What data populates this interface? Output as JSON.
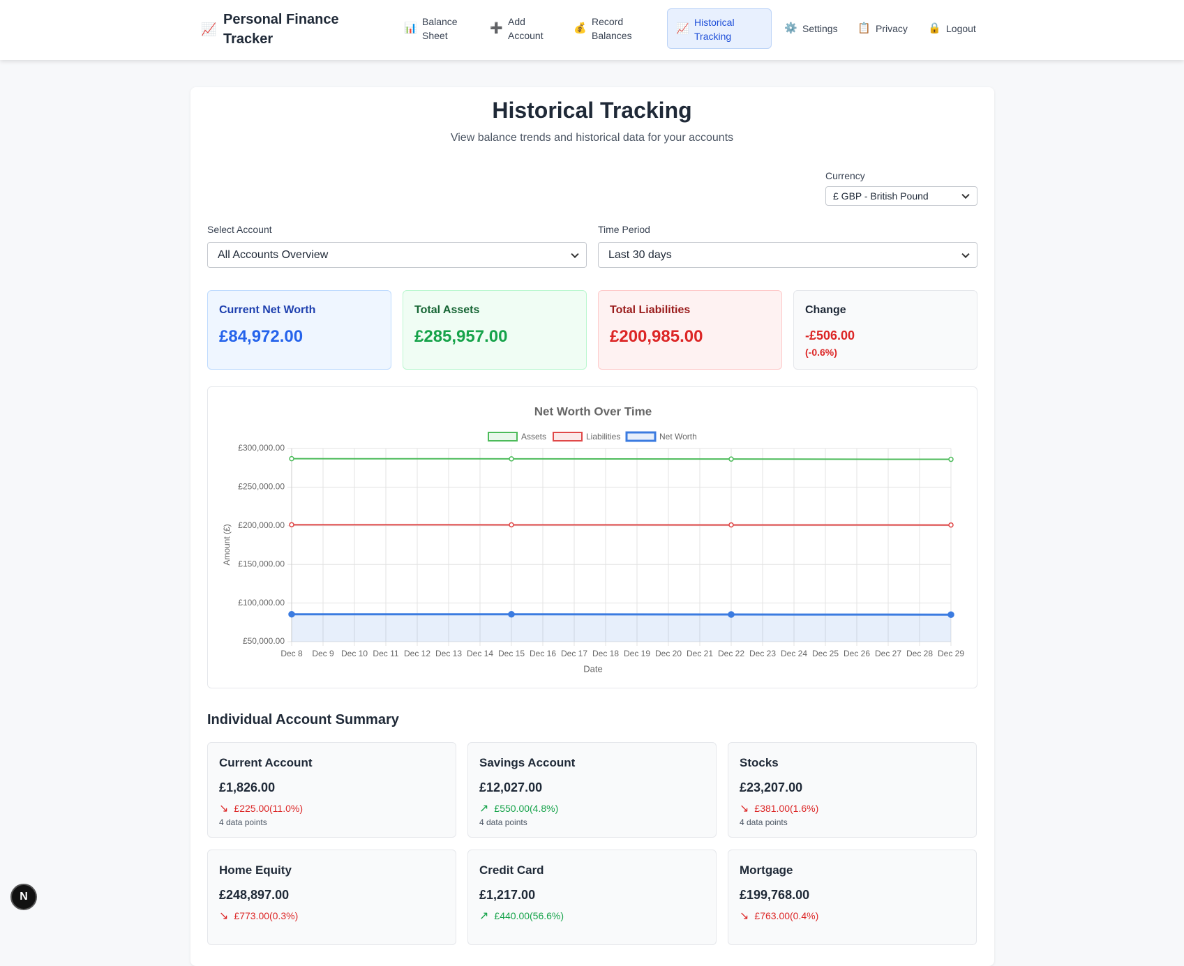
{
  "nav": {
    "brand_icon": "📈",
    "brand": "Personal Finance Tracker",
    "items": [
      {
        "icon": "📊",
        "label": "Balance Sheet"
      },
      {
        "icon": "➕",
        "label": "Add Account"
      },
      {
        "icon": "💰",
        "label": "Record Balances"
      },
      {
        "icon": "📈",
        "label": "Historical Tracking"
      },
      {
        "icon": "⚙️",
        "label": "Settings"
      },
      {
        "icon": "📋",
        "label": "Privacy"
      },
      {
        "icon": "🔒",
        "label": "Logout"
      }
    ]
  },
  "header": {
    "title": "Historical Tracking",
    "subtitle": "View balance trends and historical data for your accounts"
  },
  "filters": {
    "currency_label": "Currency",
    "currency": "£ GBP - British Pound",
    "account_label": "Select Account",
    "account": "All Accounts Overview",
    "period_label": "Time Period",
    "period": "Last 30 days"
  },
  "stats": [
    {
      "title": "Current Net Worth",
      "value": "£84,972.00"
    },
    {
      "title": "Total Assets",
      "value": "£285,957.00"
    },
    {
      "title": "Total Liabilities",
      "value": "£200,985.00"
    },
    {
      "title": "Change",
      "value": "-£506.00",
      "percent": "(-0.6%)"
    }
  ],
  "chart_data": {
    "type": "line",
    "title": "Net Worth Over Time",
    "x_label": "Date",
    "y_label": "Amount (£)",
    "xticks": [
      "Dec 8",
      "Dec 9",
      "Dec 10",
      "Dec 11",
      "Dec 12",
      "Dec 13",
      "Dec 14",
      "Dec 15",
      "Dec 16",
      "Dec 17",
      "Dec 18",
      "Dec 19",
      "Dec 20",
      "Dec 21",
      "Dec 22",
      "Dec 23",
      "Dec 24",
      "Dec 25",
      "Dec 26",
      "Dec 27",
      "Dec 28",
      "Dec 29"
    ],
    "x": [
      "Dec 8",
      "Dec 15",
      "Dec 22",
      "Dec 29"
    ],
    "series": [
      {
        "name": "Assets",
        "color": "#4cbb5a",
        "values": [
          286800,
          286600,
          286300,
          285957
        ]
      },
      {
        "name": "Liabilities",
        "color": "#e04848",
        "values": [
          201322,
          201200,
          201100,
          200985
        ]
      },
      {
        "name": "Net Worth",
        "color": "#3b7be0",
        "values": [
          85478,
          85400,
          85200,
          84972
        ],
        "fill": true
      }
    ],
    "ylim": [
      50000,
      300000
    ],
    "yticks": [
      {
        "value": 50000,
        "label": "£50,000.00"
      },
      {
        "value": 100000,
        "label": "£100,000.00"
      },
      {
        "value": 150000,
        "label": "£150,000.00"
      },
      {
        "value": 200000,
        "label": "£200,000.00"
      },
      {
        "value": 250000,
        "label": "£250,000.00"
      },
      {
        "value": 300000,
        "label": "£300,000.00"
      }
    ],
    "grid": true,
    "legend": "top"
  },
  "summary": {
    "title": "Individual Account Summary",
    "accounts": [
      {
        "name": "Current Account",
        "amount": "£1,826.00",
        "arrow": "↘",
        "change": "£225.00(11.0%)",
        "points": "4 data points"
      },
      {
        "name": "Savings Account",
        "amount": "£12,027.00",
        "arrow": "↗",
        "change": "£550.00(4.8%)",
        "points": "4 data points"
      },
      {
        "name": "Stocks",
        "amount": "£23,207.00",
        "arrow": "↘",
        "change": "£381.00(1.6%)",
        "points": "4 data points"
      },
      {
        "name": "Home Equity",
        "amount": "£248,897.00",
        "arrow": "↘",
        "change": "£773.00(0.3%)"
      },
      {
        "name": "Credit Card",
        "amount": "£1,217.00",
        "arrow": "↗",
        "change": "£440.00(56.6%)"
      },
      {
        "name": "Mortgage",
        "amount": "£199,768.00",
        "arrow": "↘",
        "change": "£763.00(0.4%)"
      }
    ]
  },
  "badge": "N"
}
